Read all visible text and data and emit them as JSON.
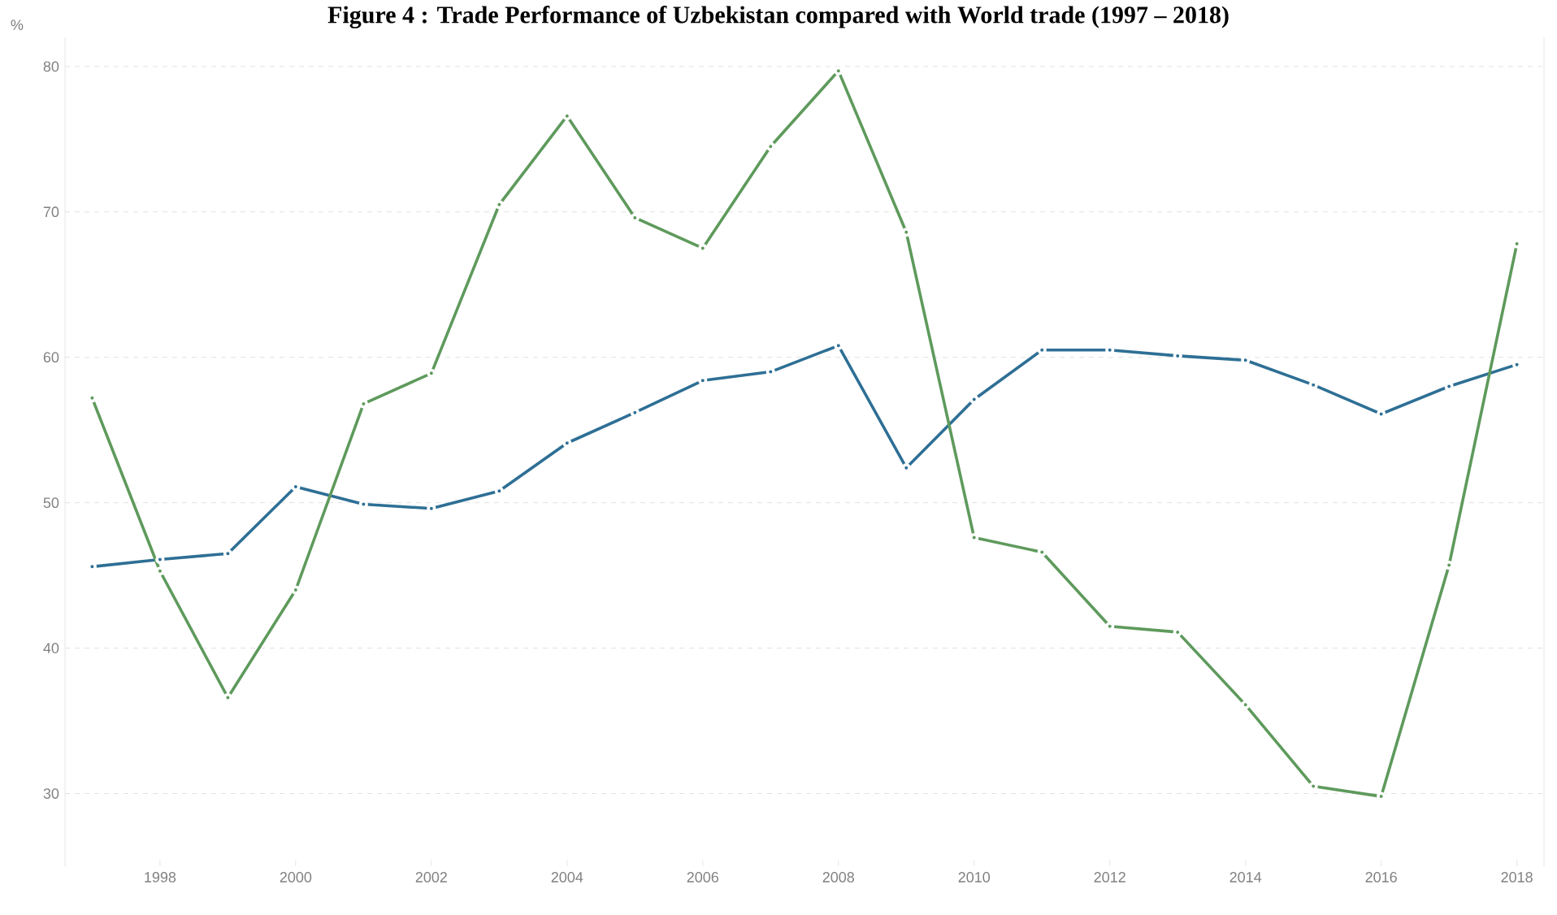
{
  "chart_data": {
    "type": "line",
    "title": "Figure 4 : Trade Performance of Uzbekistan compared with World trade (1997 – 2018)",
    "ylabel": "%",
    "x": [
      1997,
      1998,
      1999,
      2000,
      2001,
      2002,
      2003,
      2004,
      2005,
      2006,
      2007,
      2008,
      2009,
      2010,
      2011,
      2012,
      2013,
      2014,
      2015,
      2016,
      2017,
      2018
    ],
    "series": [
      {
        "color": "#2e6f95",
        "values": [
          45.6,
          46.1,
          46.5,
          51.1,
          49.9,
          49.6,
          50.8,
          54.1,
          56.2,
          58.4,
          59.0,
          60.8,
          52.4,
          57.1,
          60.5,
          60.5,
          60.1,
          59.8,
          58.1,
          56.1,
          58.0,
          59.5
        ]
      },
      {
        "color": "#5e9a5c",
        "values": [
          57.2,
          45.3,
          36.6,
          44.0,
          56.8,
          58.9,
          70.5,
          76.6,
          69.6,
          67.5,
          74.5,
          79.7,
          68.6,
          47.6,
          46.6,
          41.5,
          41.1,
          36.1,
          30.5,
          29.8,
          45.7,
          67.8
        ]
      }
    ],
    "xlim": [
      1996.6,
      2018.4
    ],
    "ylim": [
      25,
      82
    ],
    "xticks": [
      1998,
      2000,
      2002,
      2004,
      2006,
      2008,
      2010,
      2012,
      2014,
      2016,
      2018
    ],
    "yticks": [
      30,
      40,
      50,
      60,
      70,
      80
    ],
    "grid": "y",
    "marker": "circle",
    "line_style": "solid"
  }
}
